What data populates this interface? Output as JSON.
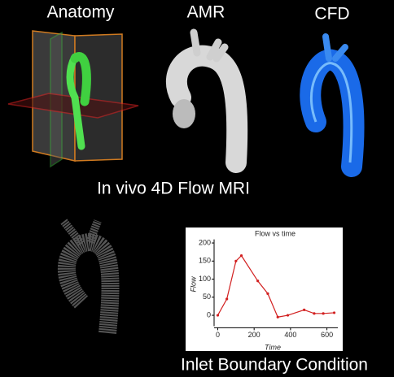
{
  "labels": {
    "anatomy": "Anatomy",
    "amr": "AMR",
    "cfd": "CFD",
    "mri": "In vivo 4D Flow MRI",
    "inlet": "Inlet Boundary Condition"
  },
  "chart_data": {
    "type": "line",
    "title": "Flow vs time",
    "x_label": "Time",
    "y_label": "Flow",
    "x": [
      0,
      50,
      100,
      130,
      220,
      275,
      330,
      385,
      475,
      530,
      580,
      640
    ],
    "series": [
      {
        "name": "Flow",
        "color": "#d22020",
        "values": [
          0,
          45,
          150,
          165,
          95,
          60,
          -5,
          0,
          15,
          5,
          5,
          7
        ]
      }
    ],
    "xlim": [
      -20,
      660
    ],
    "xticks": [
      0,
      200,
      400,
      600
    ],
    "ylim": [
      -30,
      210
    ],
    "yticks": [
      0,
      50,
      100,
      150,
      200
    ]
  }
}
